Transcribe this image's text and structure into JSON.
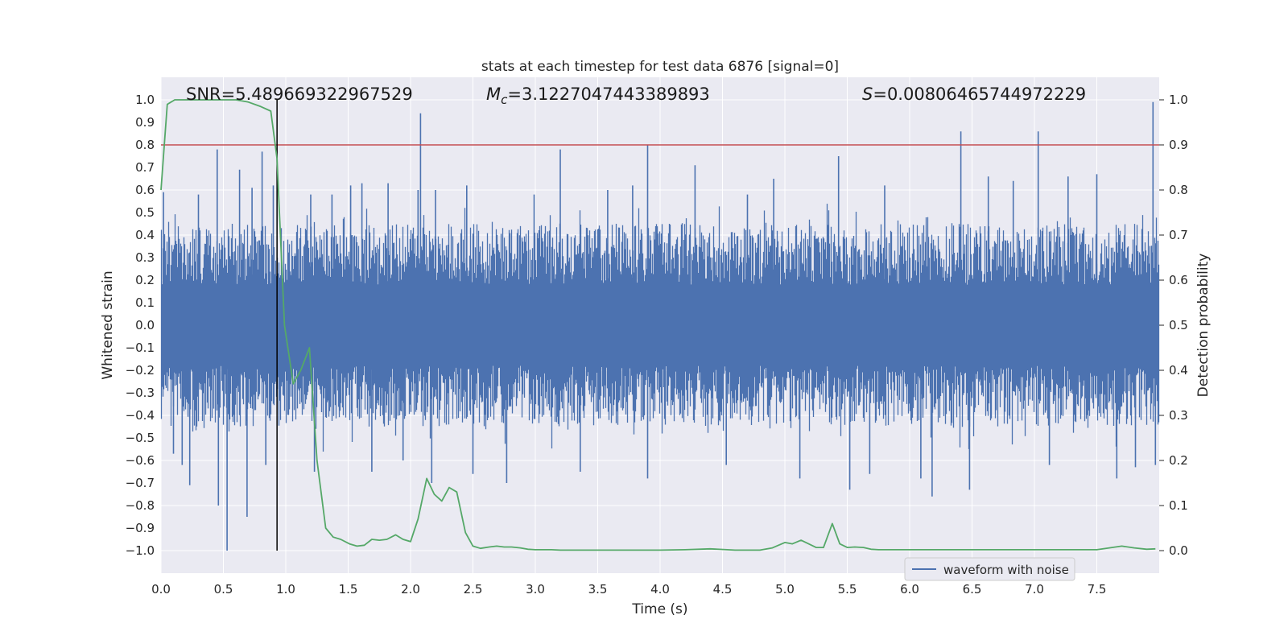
{
  "chart_data": {
    "type": "line",
    "title": "stats at each timestep for test data 6876 [signal=0]",
    "xlabel": "Time (s)",
    "ylabel": "Whitened strain",
    "ylabel_right": "Detection probability",
    "xlim": [
      0.0,
      8.0
    ],
    "ylim": [
      -1.1,
      1.1
    ],
    "ylim_right": [
      -0.05,
      1.05
    ],
    "x_ticks": [
      0.0,
      0.5,
      1.0,
      1.5,
      2.0,
      2.5,
      3.0,
      3.5,
      4.0,
      4.5,
      5.0,
      5.5,
      6.0,
      6.5,
      7.0,
      7.5
    ],
    "x_tick_labels": [
      "0.0",
      "0.5",
      "1.0",
      "1.5",
      "2.0",
      "2.5",
      "3.0",
      "3.5",
      "4.0",
      "4.5",
      "5.0",
      "5.5",
      "6.0",
      "6.5",
      "7.0",
      "7.5"
    ],
    "y_ticks": [
      1.0,
      0.9,
      0.8,
      0.7,
      0.6,
      0.5,
      0.4,
      0.3,
      0.2,
      0.1,
      0.0,
      -0.1,
      -0.2,
      -0.3,
      -0.4,
      -0.5,
      -0.6,
      -0.7,
      -0.8,
      -0.9,
      -1.0
    ],
    "y_tick_labels": [
      "1.0",
      "0.9",
      "0.8",
      "0.7",
      "0.6",
      "0.5",
      "0.4",
      "0.3",
      "0.2",
      "0.1",
      "0.0",
      "−0.1",
      "−0.2",
      "−0.3",
      "−0.4",
      "−0.5",
      "−0.6",
      "−0.7",
      "−0.8",
      "−0.9",
      "−1.0"
    ],
    "y2_ticks": [
      1.0,
      0.9,
      0.8,
      0.7,
      0.6,
      0.5,
      0.4,
      0.3,
      0.2,
      0.1,
      0.0
    ],
    "y2_tick_labels": [
      "1.0",
      "0.9",
      "0.8",
      "0.7",
      "0.6",
      "0.5",
      "0.4",
      "0.3",
      "0.2",
      "0.1",
      "0.0"
    ],
    "annotations": {
      "snr": "SNR=5.489669322967529",
      "mc_symbol": "M",
      "mc_sub": "c",
      "mc_value": "=3.1227047443389893",
      "s_symbol": "S",
      "s_value": "=0.00806465744972229"
    },
    "threshold": {
      "value": 0.9,
      "axis": "right",
      "color": "#c44e52"
    },
    "marker_time": 0.93,
    "waveform": {
      "name": "waveform with noise",
      "color": "#4c72b0",
      "envelope_upper": 0.45,
      "envelope_lower": -0.45,
      "peaks": [
        {
          "t": 0.02,
          "v": 0.59
        },
        {
          "t": 0.1,
          "v": -0.57
        },
        {
          "t": 0.17,
          "v": -0.62
        },
        {
          "t": 0.23,
          "v": -0.71
        },
        {
          "t": 0.3,
          "v": 0.58
        },
        {
          "t": 0.45,
          "v": 0.78
        },
        {
          "t": 0.46,
          "v": -0.8
        },
        {
          "t": 0.53,
          "v": -1.0
        },
        {
          "t": 0.63,
          "v": 0.69
        },
        {
          "t": 0.69,
          "v": -0.85
        },
        {
          "t": 0.73,
          "v": 0.61
        },
        {
          "t": 0.81,
          "v": 0.77
        },
        {
          "t": 0.84,
          "v": -0.62
        },
        {
          "t": 0.9,
          "v": 0.62
        },
        {
          "t": 1.2,
          "v": 0.58
        },
        {
          "t": 1.23,
          "v": -0.65
        },
        {
          "t": 1.37,
          "v": 0.58
        },
        {
          "t": 1.52,
          "v": 0.62
        },
        {
          "t": 1.61,
          "v": 0.63
        },
        {
          "t": 1.69,
          "v": -0.65
        },
        {
          "t": 1.82,
          "v": 0.63
        },
        {
          "t": 1.94,
          "v": -0.6
        },
        {
          "t": 2.06,
          "v": 0.6
        },
        {
          "t": 2.08,
          "v": 0.94
        },
        {
          "t": 2.17,
          "v": -0.7
        },
        {
          "t": 2.2,
          "v": 0.6
        },
        {
          "t": 2.45,
          "v": 0.62
        },
        {
          "t": 2.5,
          "v": -0.66
        },
        {
          "t": 2.77,
          "v": -0.7
        },
        {
          "t": 2.99,
          "v": 0.58
        },
        {
          "t": 3.2,
          "v": 0.78
        },
        {
          "t": 3.36,
          "v": -0.65
        },
        {
          "t": 3.58,
          "v": 0.6
        },
        {
          "t": 3.78,
          "v": 0.62
        },
        {
          "t": 3.9,
          "v": 0.8
        },
        {
          "t": 3.9,
          "v": -0.68
        },
        {
          "t": 4.28,
          "v": 0.71
        },
        {
          "t": 4.53,
          "v": -0.62
        },
        {
          "t": 4.7,
          "v": 0.58
        },
        {
          "t": 4.91,
          "v": 0.65
        },
        {
          "t": 5.12,
          "v": -0.68
        },
        {
          "t": 5.43,
          "v": 0.75
        },
        {
          "t": 5.52,
          "v": -0.73
        },
        {
          "t": 5.68,
          "v": -0.66
        },
        {
          "t": 5.8,
          "v": 0.62
        },
        {
          "t": 6.09,
          "v": -0.68
        },
        {
          "t": 6.18,
          "v": -0.76
        },
        {
          "t": 6.41,
          "v": 0.86
        },
        {
          "t": 6.48,
          "v": -0.73
        },
        {
          "t": 6.63,
          "v": 0.66
        },
        {
          "t": 6.83,
          "v": 0.64
        },
        {
          "t": 7.03,
          "v": 0.86
        },
        {
          "t": 7.12,
          "v": -0.62
        },
        {
          "t": 7.27,
          "v": 0.66
        },
        {
          "t": 7.5,
          "v": 0.67
        },
        {
          "t": 7.66,
          "v": -0.68
        },
        {
          "t": 7.81,
          "v": -0.63
        },
        {
          "t": 7.95,
          "v": 0.99
        },
        {
          "t": 7.97,
          "v": -0.62
        }
      ]
    },
    "probability": {
      "name": "detection probability",
      "color": "#55a868",
      "x": [
        0.0,
        0.05,
        0.11,
        0.2,
        0.3,
        0.4,
        0.5,
        0.6,
        0.7,
        0.8,
        0.88,
        0.93,
        0.99,
        1.06,
        1.12,
        1.19,
        1.25,
        1.32,
        1.38,
        1.44,
        1.51,
        1.57,
        1.63,
        1.69,
        1.75,
        1.81,
        1.88,
        1.94,
        2.0,
        2.06,
        2.13,
        2.19,
        2.25,
        2.31,
        2.37,
        2.44,
        2.5,
        2.56,
        2.63,
        2.69,
        2.75,
        2.81,
        2.88,
        2.94,
        3.0,
        3.06,
        3.13,
        3.2,
        3.5,
        4.0,
        4.2,
        4.4,
        4.6,
        4.8,
        4.9,
        5.0,
        5.06,
        5.13,
        5.19,
        5.25,
        5.31,
        5.38,
        5.44,
        5.5,
        5.56,
        5.63,
        5.69,
        5.75,
        5.81,
        5.9,
        6.2,
        6.5,
        7.0,
        7.5,
        7.6,
        7.7,
        7.8,
        7.9,
        7.97
      ],
      "y": [
        0.8,
        0.99,
        1.0,
        1.0,
        1.0,
        1.0,
        1.0,
        1.0,
        0.995,
        0.985,
        0.975,
        0.87,
        0.5,
        0.37,
        0.4,
        0.45,
        0.2,
        0.05,
        0.03,
        0.025,
        0.015,
        0.01,
        0.012,
        0.025,
        0.023,
        0.025,
        0.035,
        0.025,
        0.02,
        0.07,
        0.16,
        0.125,
        0.11,
        0.14,
        0.13,
        0.04,
        0.01,
        0.005,
        0.008,
        0.01,
        0.008,
        0.008,
        0.006,
        0.003,
        0.002,
        0.002,
        0.002,
        0.001,
        0.001,
        0.001,
        0.002,
        0.004,
        0.001,
        0.001,
        0.006,
        0.018,
        0.015,
        0.023,
        0.015,
        0.007,
        0.007,
        0.06,
        0.015,
        0.007,
        0.008,
        0.007,
        0.003,
        0.002,
        0.002,
        0.002,
        0.002,
        0.002,
        0.002,
        0.002,
        0.006,
        0.01,
        0.006,
        0.003,
        0.004
      ]
    },
    "legend": {
      "entries": [
        "waveform with noise"
      ],
      "placement": "lower-right"
    }
  }
}
